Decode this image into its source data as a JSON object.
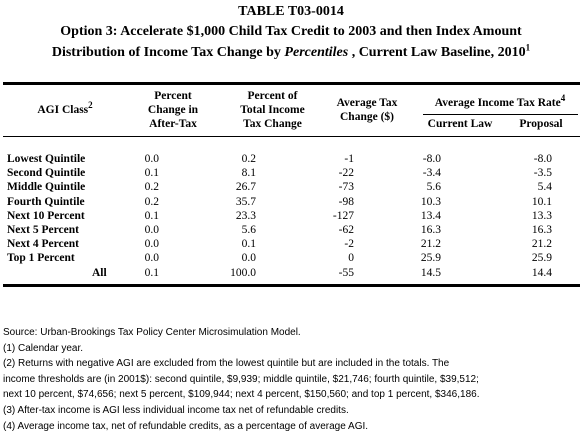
{
  "title": {
    "line1": "TABLE T03-0014",
    "line2": "Option 3: Accelerate $1,000 Child Tax Credit to 2003 and then Index Amount",
    "line3_prefix": "Distribution of Income Tax Change by ",
    "line3_italic": "Percentiles",
    "line3_suffix": " , Current Law Baseline, 2010",
    "line3_sup": "1"
  },
  "headers": {
    "agi_class": "AGI Class",
    "agi_class_sup": "2",
    "pct_change_after_tax": [
      "Percent",
      "Change in",
      "After-Tax"
    ],
    "pct_total_change": [
      "Percent of",
      "Total Income",
      "Tax Change"
    ],
    "avg_tax_change": [
      "Average Tax",
      "Change ($)"
    ],
    "avg_rate": "Average Income Tax Rate",
    "avg_rate_sup": "4",
    "current_law": "Current Law",
    "proposal": "Proposal"
  },
  "rows": [
    {
      "label": "Lowest Quintile",
      "pct_after_tax": "0.0",
      "pct_total": "0.2",
      "avg_change": "-1",
      "current": "-8.0",
      "proposal": "-8.0"
    },
    {
      "label": "Second Quintile",
      "pct_after_tax": "0.1",
      "pct_total": "8.1",
      "avg_change": "-22",
      "current": "-3.4",
      "proposal": "-3.5"
    },
    {
      "label": "Middle Quintile",
      "pct_after_tax": "0.2",
      "pct_total": "26.7",
      "avg_change": "-73",
      "current": "5.6",
      "proposal": "5.4"
    },
    {
      "label": "Fourth Quintile",
      "pct_after_tax": "0.2",
      "pct_total": "35.7",
      "avg_change": "-98",
      "current": "10.3",
      "proposal": "10.1"
    },
    {
      "label": "Next 10 Percent",
      "pct_after_tax": "0.1",
      "pct_total": "23.3",
      "avg_change": "-127",
      "current": "13.4",
      "proposal": "13.3"
    },
    {
      "label": "Next 5 Percent",
      "pct_after_tax": "0.0",
      "pct_total": "5.6",
      "avg_change": "-62",
      "current": "16.3",
      "proposal": "16.3"
    },
    {
      "label": "Next 4 Percent",
      "pct_after_tax": "0.0",
      "pct_total": "0.1",
      "avg_change": "-2",
      "current": "21.2",
      "proposal": "21.2"
    },
    {
      "label": "Top 1 Percent",
      "pct_after_tax": "0.0",
      "pct_total": "0.0",
      "avg_change": "0",
      "current": "25.9",
      "proposal": "25.9"
    },
    {
      "label": "All",
      "pct_after_tax": "0.1",
      "pct_total": "100.0",
      "avg_change": "-55",
      "current": "14.5",
      "proposal": "14.4"
    }
  ],
  "notes": [
    "Source: Urban-Brookings Tax Policy Center Microsimulation Model.",
    "(1) Calendar year.",
    "(2) Returns with negative AGI are excluded from the lowest quintile but are included in the totals. The",
    "income thresholds are (in 2001$): second quintile, $9,939; middle quintile, $21,746; fourth quintile, $39,512;",
    "next 10 percent, $74,656; next 5 percent, $109,944; next 4 percent, $150,560; and top 1 percent, $346,186.",
    "(3) After-tax income is AGI less individual income tax net of refundable credits.",
    "(4) Average income tax, net of refundable credits, as a percentage of average AGI."
  ]
}
